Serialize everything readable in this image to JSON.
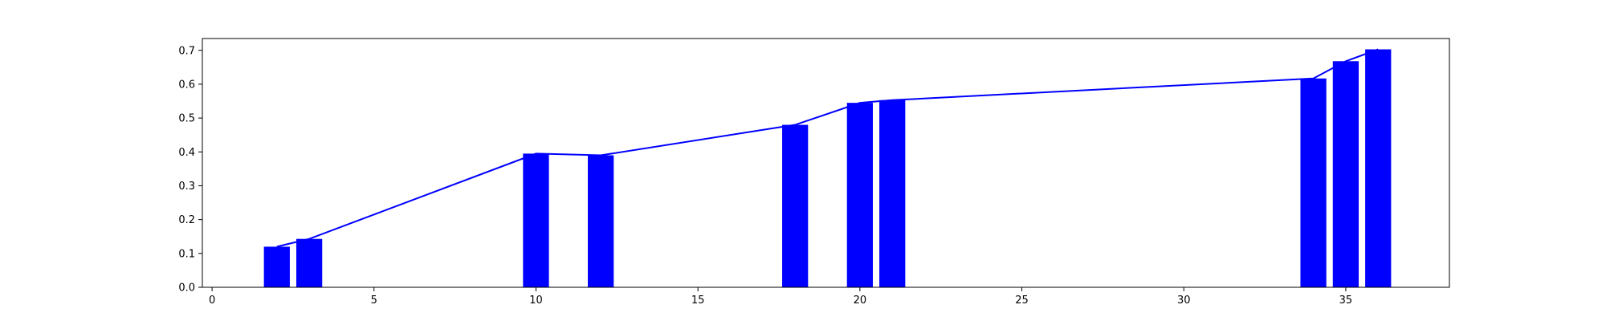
{
  "chart_data": {
    "type": "bar",
    "title": "",
    "xlabel": "",
    "ylabel": "",
    "xlim": [
      -0.3,
      38.2
    ],
    "ylim": [
      0,
      0.735
    ],
    "x_ticks": [
      0,
      5,
      10,
      15,
      20,
      25,
      30,
      35
    ],
    "y_ticks": [
      0.0,
      0.1,
      0.2,
      0.3,
      0.4,
      0.5,
      0.6,
      0.7
    ],
    "x_tick_labels": [
      "0",
      "5",
      "10",
      "15",
      "20",
      "25",
      "30",
      "35"
    ],
    "y_tick_labels": [
      "0.0",
      "0.1",
      "0.2",
      "0.3",
      "0.4",
      "0.5",
      "0.6",
      "0.7"
    ],
    "grid": false,
    "legend": "none",
    "bar_width": 0.8,
    "bar_color": "#0000ff",
    "line_color": "#0000ff",
    "x": [
      2,
      3,
      10,
      12,
      18,
      20,
      21,
      34,
      35,
      36
    ],
    "values": [
      0.12,
      0.143,
      0.395,
      0.39,
      0.48,
      0.545,
      0.553,
      0.617,
      0.668,
      0.703
    ]
  }
}
